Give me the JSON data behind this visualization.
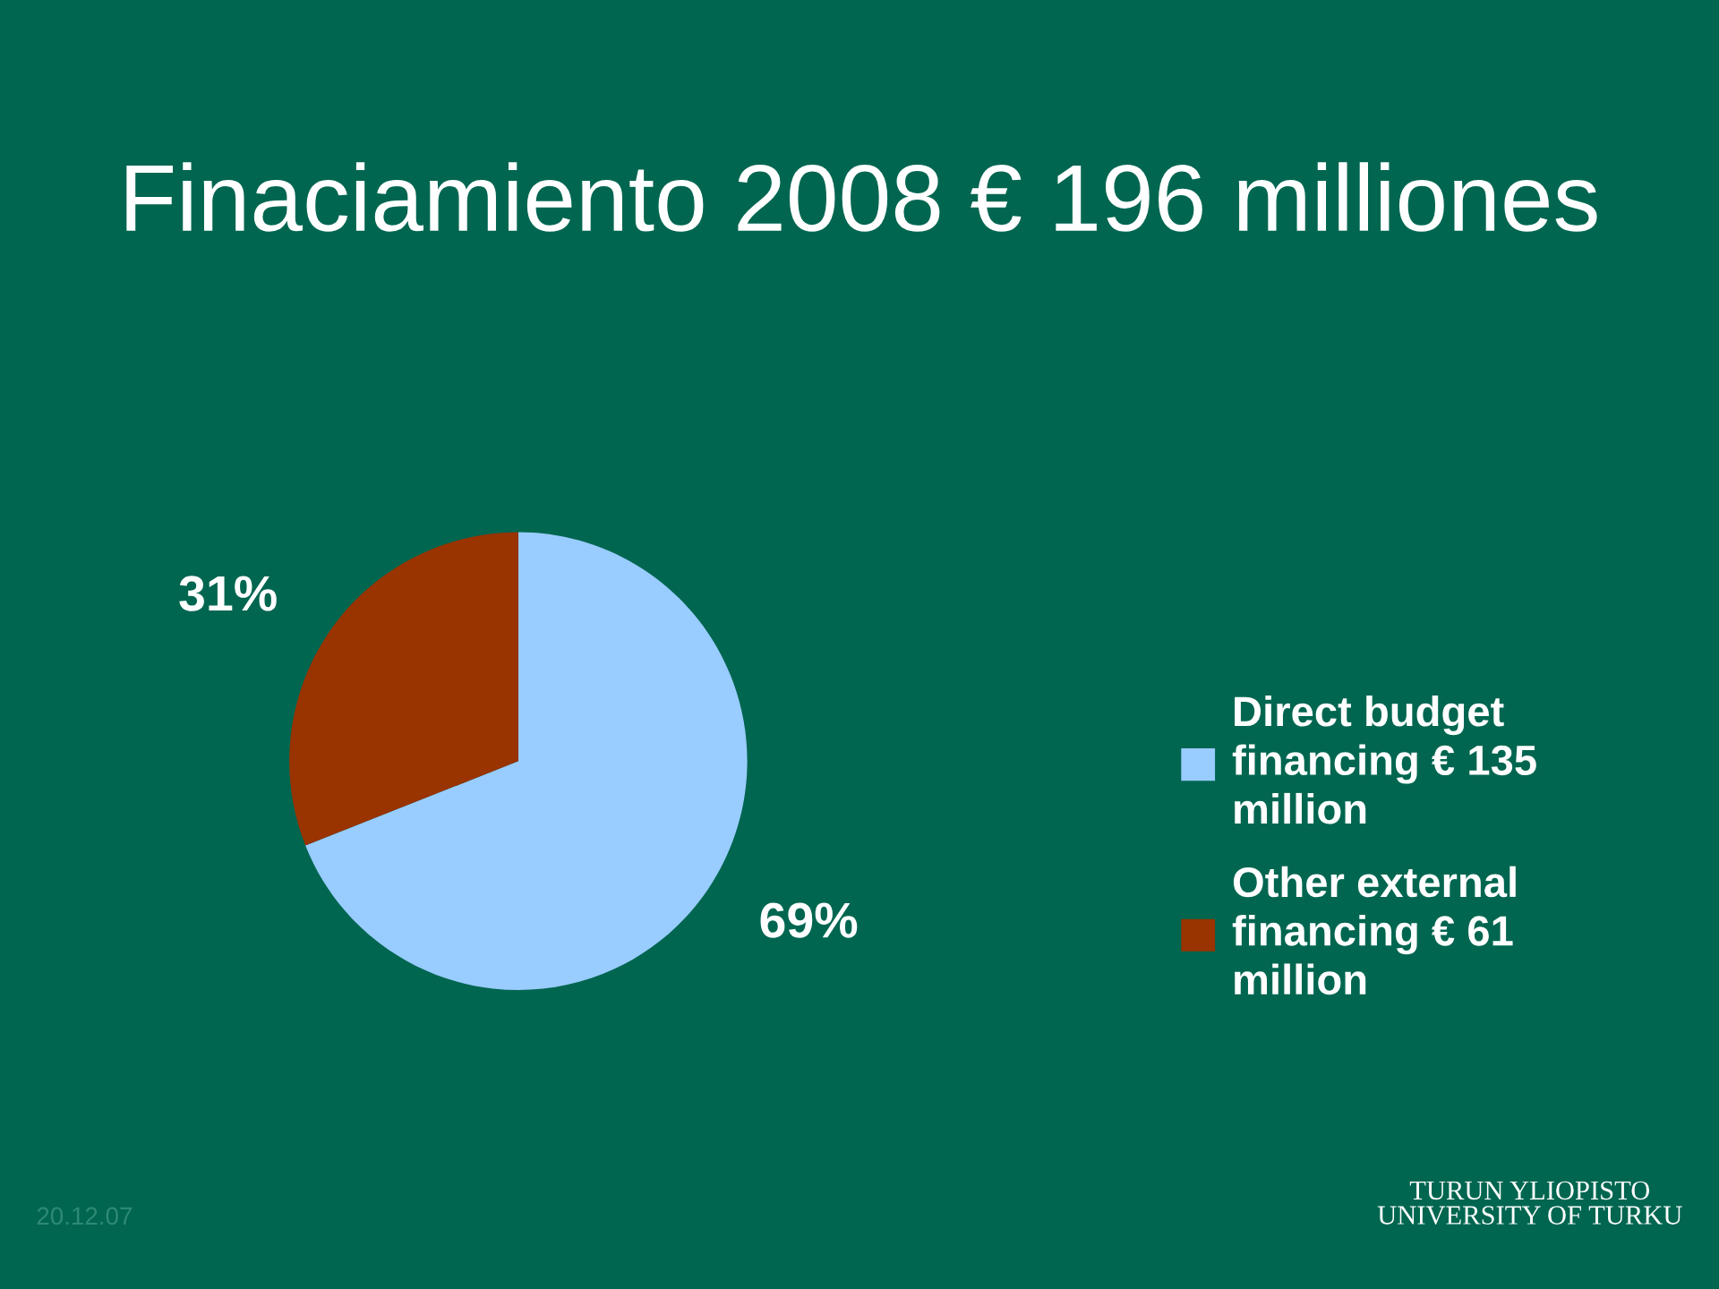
{
  "chart_data": {
    "type": "pie",
    "title": "Finaciamiento 2008 € 196 milliones",
    "categories": [
      "Direct budget\nfinancing € 135\nmillion",
      "Other external\nfinancing € 61\nmillion"
    ],
    "values": [
      69,
      31
    ],
    "colors": [
      "#99ccff",
      "#993300"
    ],
    "value_labels": [
      "69%",
      "31%"
    ],
    "legend": "right",
    "annotations": [
      "20.12.07",
      "TURUN YLIOPISTO\nUNIVERSITY OF TURKU"
    ]
  }
}
